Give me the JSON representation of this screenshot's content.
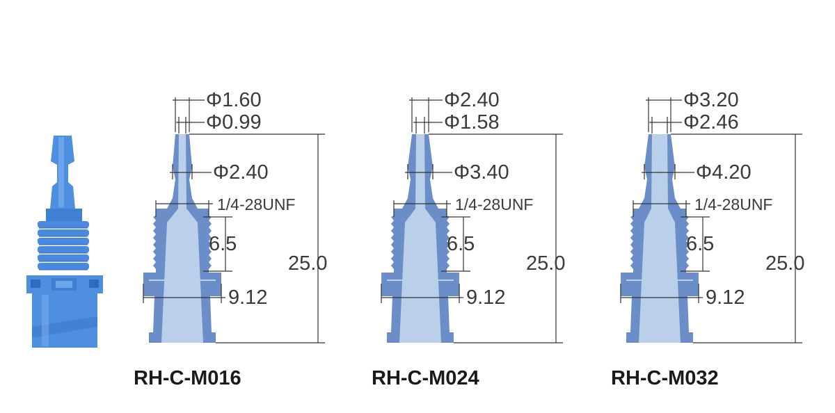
{
  "colors": {
    "body_dark": "#6b8ec9",
    "bore_light": "#b9cfea",
    "photo_blue": "#4f8fe0",
    "line": "#333333"
  },
  "photo": {
    "icon": "luer-barb-fitting-photo"
  },
  "parts": [
    {
      "model": "RH-C-M016",
      "tip_od": "Φ1.60",
      "bore": "Φ0.99",
      "barb_od": "Φ2.40",
      "thread": "1/4-28UNF",
      "thread_len": "6.5",
      "length": "25.0",
      "flange": "9.12"
    },
    {
      "model": "RH-C-M024",
      "tip_od": "Φ2.40",
      "bore": "Φ1.58",
      "barb_od": "Φ3.40",
      "thread": "1/4-28UNF",
      "thread_len": "6.5",
      "length": "25.0",
      "flange": "9.12"
    },
    {
      "model": "RH-C-M032",
      "tip_od": "Φ3.20",
      "bore": "Φ2.46",
      "barb_od": "Φ4.20",
      "thread": "1/4-28UNF",
      "thread_len": "6.5",
      "length": "25.0",
      "flange": "9.12"
    }
  ]
}
